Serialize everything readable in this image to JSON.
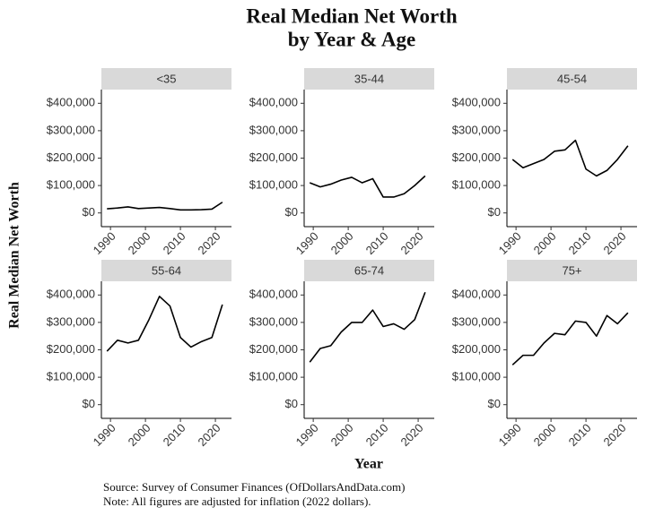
{
  "title": [
    "Real Median Net Worth",
    "by Year & Age"
  ],
  "x_label": "Year",
  "y_label": "Real Median Net Worth",
  "source": "Source:  Survey of Consumer Finances (OfDollarsAndData.com)",
  "note": "Note: All figures are adjusted for inflation (2022 dollars).",
  "chart_data": [
    {
      "type": "line",
      "title": "<35",
      "color": "#000000",
      "x": [
        1989,
        1992,
        1995,
        1998,
        2001,
        2004,
        2007,
        2010,
        2013,
        2016,
        2019,
        2022
      ],
      "values": [
        15000,
        18000,
        22000,
        16000,
        18000,
        20000,
        16000,
        11000,
        11000,
        12000,
        14000,
        39000
      ],
      "xlim": [
        1987.4,
        2024.6
      ],
      "ylim": [
        -50000,
        450000
      ],
      "xticks": [
        1990,
        2000,
        2010,
        2020
      ],
      "yticks": [
        {
          "value": 0,
          "label": "$0"
        },
        {
          "value": 100000,
          "label": "$100,000"
        },
        {
          "value": 200000,
          "label": "$200,000"
        },
        {
          "value": 300000,
          "label": "$300,000"
        },
        {
          "value": 400000,
          "label": "$400,000"
        }
      ]
    },
    {
      "type": "line",
      "title": "35-44",
      "color": "#000000",
      "x": [
        1989,
        1992,
        1995,
        1998,
        2001,
        2004,
        2007,
        2010,
        2013,
        2016,
        2019,
        2022
      ],
      "values": [
        110000,
        95000,
        105000,
        120000,
        130000,
        110000,
        125000,
        58000,
        58000,
        70000,
        100000,
        135000
      ],
      "xlim": [
        1987.4,
        2024.6
      ],
      "ylim": [
        -50000,
        450000
      ],
      "xticks": [
        1990,
        2000,
        2010,
        2020
      ],
      "yticks": [
        {
          "value": 0,
          "label": "$0"
        },
        {
          "value": 100000,
          "label": "$100,000"
        },
        {
          "value": 200000,
          "label": "$200,000"
        },
        {
          "value": 300000,
          "label": "$300,000"
        },
        {
          "value": 400000,
          "label": "$400,000"
        }
      ]
    },
    {
      "type": "line",
      "title": "45-54",
      "color": "#000000",
      "x": [
        1989,
        1992,
        1995,
        1998,
        2001,
        2004,
        2007,
        2010,
        2013,
        2016,
        2019,
        2022
      ],
      "values": [
        195000,
        165000,
        180000,
        195000,
        225000,
        230000,
        265000,
        160000,
        135000,
        155000,
        195000,
        245000
      ],
      "xlim": [
        1987.4,
        2024.6
      ],
      "ylim": [
        -50000,
        450000
      ],
      "xticks": [
        1990,
        2000,
        2010,
        2020
      ],
      "yticks": [
        {
          "value": 0,
          "label": "$0"
        },
        {
          "value": 100000,
          "label": "$100,000"
        },
        {
          "value": 200000,
          "label": "$200,000"
        },
        {
          "value": 300000,
          "label": "$300,000"
        },
        {
          "value": 400000,
          "label": "$400,000"
        }
      ]
    },
    {
      "type": "line",
      "title": "55-64",
      "color": "#000000",
      "x": [
        1989,
        1992,
        1995,
        1998,
        2001,
        2004,
        2007,
        2010,
        2013,
        2016,
        2019,
        2022
      ],
      "values": [
        195000,
        235000,
        225000,
        235000,
        310000,
        395000,
        360000,
        245000,
        210000,
        230000,
        245000,
        365000
      ],
      "xlim": [
        1987.4,
        2024.6
      ],
      "ylim": [
        -50000,
        450000
      ],
      "xticks": [
        1990,
        2000,
        2010,
        2020
      ],
      "yticks": [
        {
          "value": 0,
          "label": "$0"
        },
        {
          "value": 100000,
          "label": "$100,000"
        },
        {
          "value": 200000,
          "label": "$200,000"
        },
        {
          "value": 300000,
          "label": "$300,000"
        },
        {
          "value": 400000,
          "label": "$400,000"
        }
      ]
    },
    {
      "type": "line",
      "title": "65-74",
      "color": "#000000",
      "x": [
        1989,
        1992,
        1995,
        1998,
        2001,
        2004,
        2007,
        2010,
        2013,
        2016,
        2019,
        2022
      ],
      "values": [
        155000,
        205000,
        215000,
        265000,
        300000,
        300000,
        345000,
        285000,
        295000,
        275000,
        310000,
        410000
      ],
      "xlim": [
        1987.4,
        2024.6
      ],
      "ylim": [
        -50000,
        450000
      ],
      "xticks": [
        1990,
        2000,
        2010,
        2020
      ],
      "yticks": [
        {
          "value": 0,
          "label": "$0"
        },
        {
          "value": 100000,
          "label": "$100,000"
        },
        {
          "value": 200000,
          "label": "$200,000"
        },
        {
          "value": 300000,
          "label": "$300,000"
        },
        {
          "value": 400000,
          "label": "$400,000"
        }
      ]
    },
    {
      "type": "line",
      "title": "75+",
      "color": "#000000",
      "x": [
        1989,
        1992,
        1995,
        1998,
        2001,
        2004,
        2007,
        2010,
        2013,
        2016,
        2019,
        2022
      ],
      "values": [
        145000,
        180000,
        180000,
        225000,
        260000,
        255000,
        305000,
        300000,
        250000,
        325000,
        295000,
        335000
      ],
      "xlim": [
        1987.4,
        2024.6
      ],
      "ylim": [
        -50000,
        450000
      ],
      "xticks": [
        1990,
        2000,
        2010,
        2020
      ],
      "yticks": [
        {
          "value": 0,
          "label": "$0"
        },
        {
          "value": 100000,
          "label": "$100,000"
        },
        {
          "value": 200000,
          "label": "$200,000"
        },
        {
          "value": 300000,
          "label": "$300,000"
        },
        {
          "value": 400000,
          "label": "$400,000"
        }
      ]
    }
  ]
}
